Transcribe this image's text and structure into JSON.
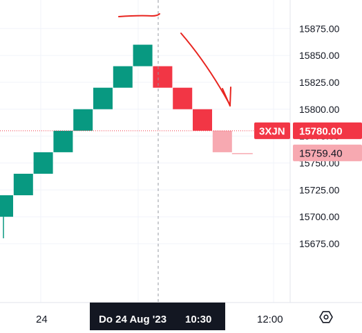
{
  "chart_data": {
    "type": "renko",
    "y_range": [
      15662,
      15878
    ],
    "y_ticks": [
      "15875.00",
      "15850.00",
      "15825.00",
      "15800.00",
      "15775.00",
      "15750.00",
      "15725.00",
      "15700.00",
      "15675.00"
    ],
    "x_ticks": [
      {
        "label": "24"
      },
      {
        "label": "12:00"
      }
    ],
    "crosshair_label": {
      "date": "Do 24 Aug '23",
      "time": "10:30"
    },
    "bricks": [
      {
        "low": 15700,
        "high": 15720,
        "dir": "up"
      },
      {
        "low": 15720,
        "high": 15740,
        "dir": "up"
      },
      {
        "low": 15740,
        "high": 15760,
        "dir": "up"
      },
      {
        "low": 15760,
        "high": 15780,
        "dir": "up"
      },
      {
        "low": 15780,
        "high": 15800,
        "dir": "up"
      },
      {
        "low": 15800,
        "high": 15820,
        "dir": "up"
      },
      {
        "low": 15820,
        "high": 15840,
        "dir": "up"
      },
      {
        "low": 15840,
        "high": 15860,
        "dir": "up"
      },
      {
        "low": 15820,
        "high": 15840,
        "dir": "down"
      },
      {
        "low": 15800,
        "high": 15820,
        "dir": "down"
      },
      {
        "low": 15780,
        "high": 15800,
        "dir": "down"
      },
      {
        "low": 15760,
        "high": 15780,
        "dir": "down",
        "projected": true
      }
    ],
    "wick": {
      "low": 15680,
      "high": 15700
    },
    "last_close_level": 15760,
    "price_tags": [
      {
        "symbol": "3XJN",
        "value": "15780.00",
        "price": 15780,
        "color": "#f23645"
      },
      {
        "value": "15759.40",
        "price": 15759.4,
        "color": "#f7a9b1"
      }
    ],
    "colors": {
      "up": "#089981",
      "down": "#f23645",
      "projected": "#f7a9b1",
      "annotation": "#e8241f"
    },
    "annotations": [
      "horizontal-line-at-top",
      "downward-arrow"
    ]
  },
  "settings_icon": "gear-icon"
}
